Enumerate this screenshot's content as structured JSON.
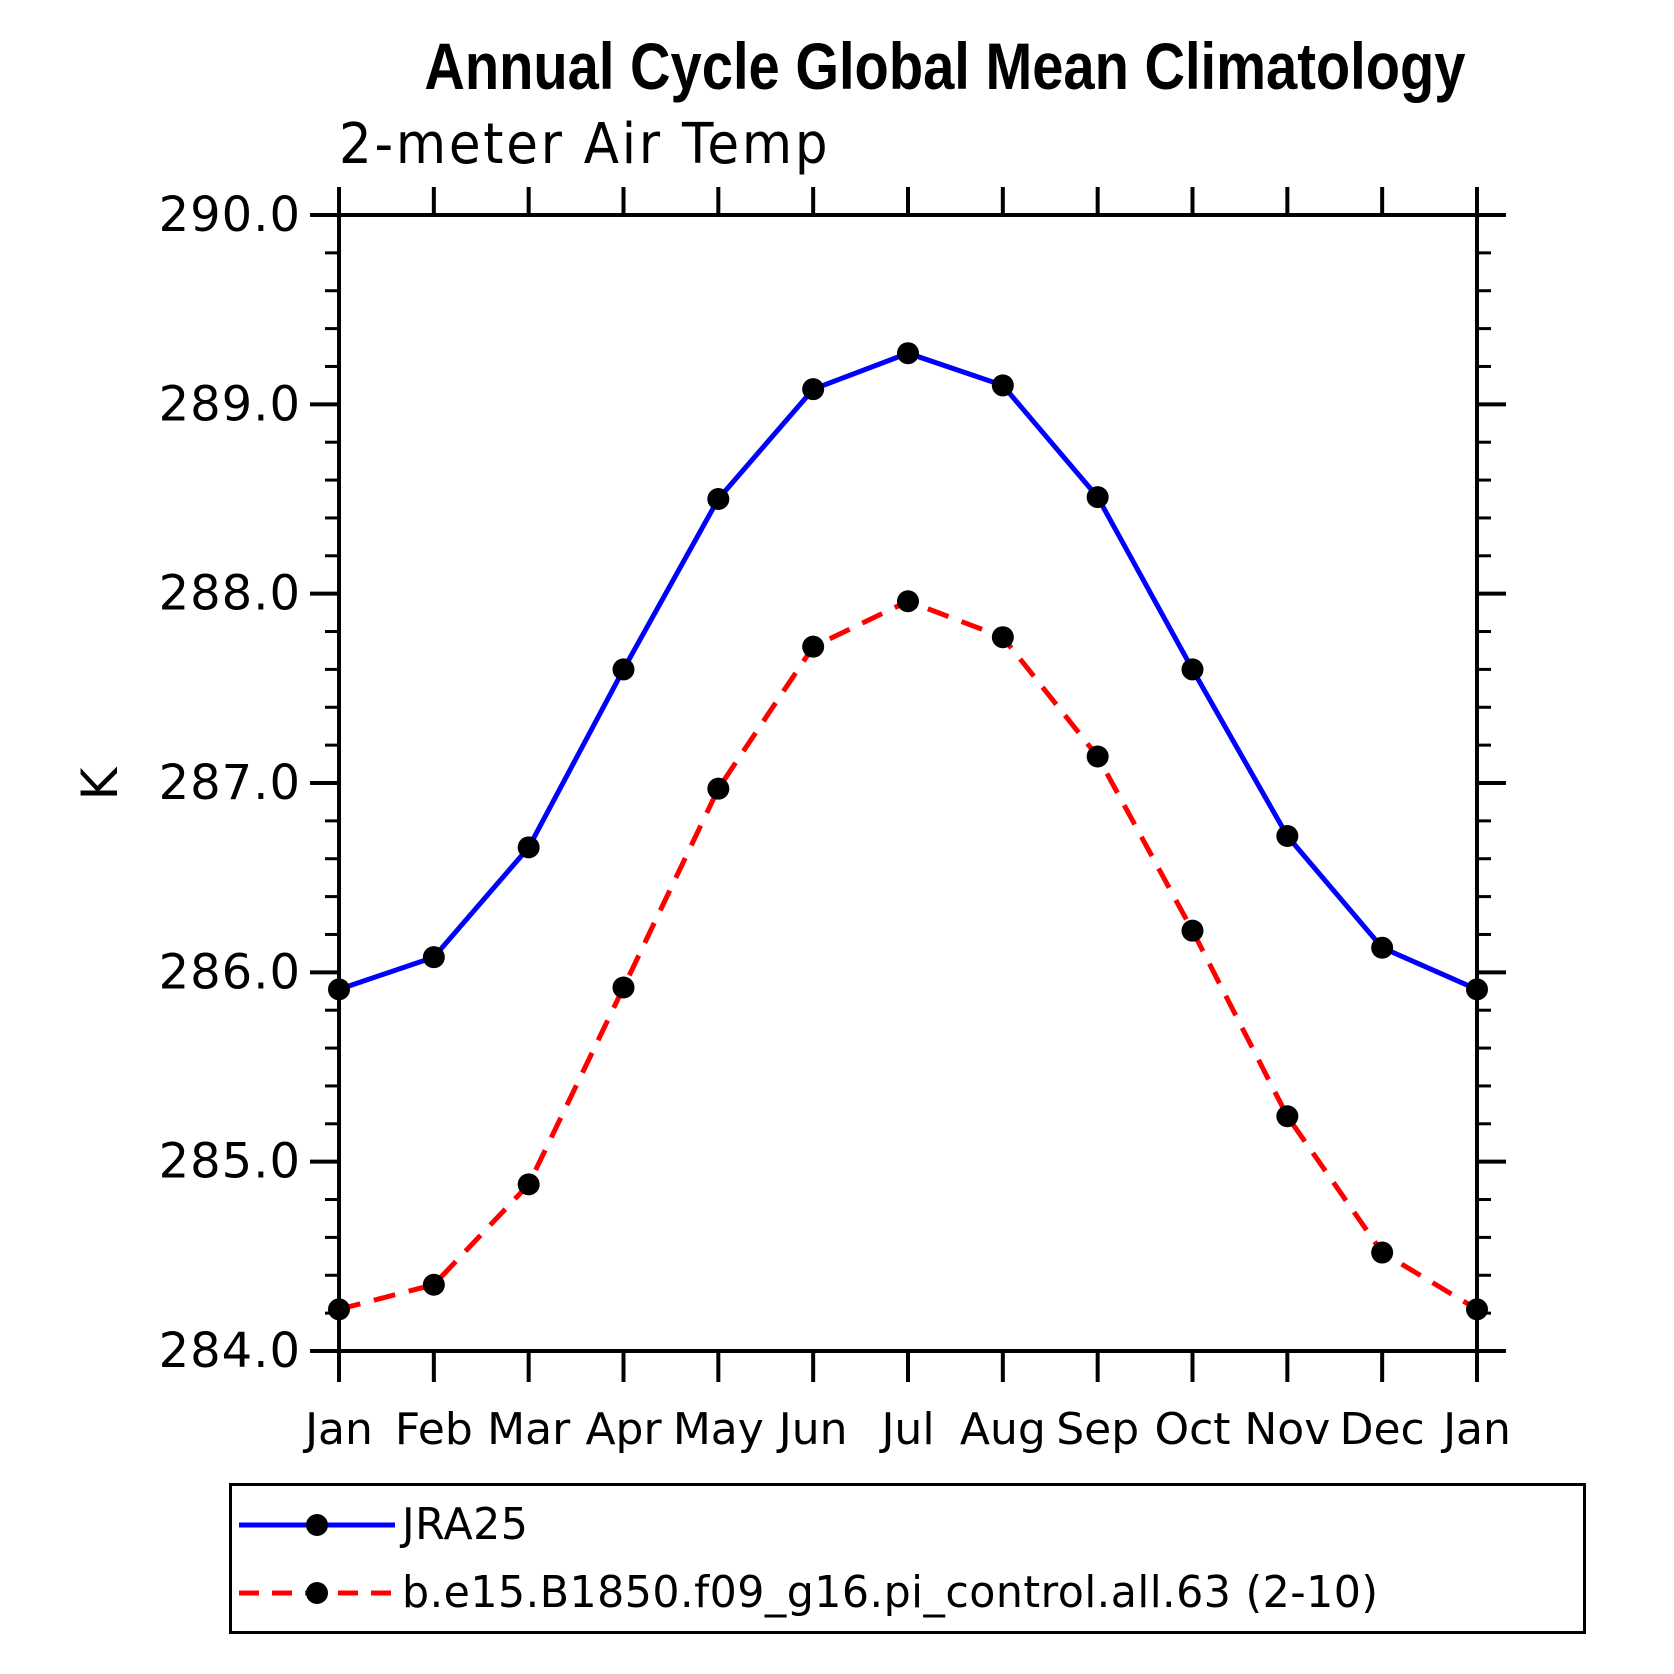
{
  "title": "Annual Cycle Global Mean Climatology",
  "subtitle": "2-meter Air Temp",
  "y_axis_label": "K",
  "chart_data": {
    "type": "line",
    "title": "Annual Cycle Global Mean Climatology",
    "subtitle": "2-meter Air Temp",
    "xlabel": "",
    "ylabel": "K",
    "categories": [
      "Jan",
      "Feb",
      "Mar",
      "Apr",
      "May",
      "Jun",
      "Jul",
      "Aug",
      "Sep",
      "Oct",
      "Nov",
      "Dec",
      "Jan"
    ],
    "ylim": [
      284.0,
      290.0
    ],
    "ytick_major_step": 1.0,
    "ytick_minor_step": 0.2,
    "ytick_labels": [
      "284.0",
      "285.0",
      "286.0",
      "287.0",
      "288.0",
      "289.0",
      "290.0"
    ],
    "grid": false,
    "legend_position": "bottom-left",
    "marker": {
      "shape": "circle",
      "color": "#000000",
      "radius": 11
    },
    "series": [
      {
        "name": "JRA25",
        "color": "#0000ff",
        "line_style": "solid",
        "values": [
          285.91,
          286.08,
          286.66,
          287.6,
          288.5,
          289.08,
          289.27,
          289.1,
          288.51,
          287.6,
          286.72,
          286.13,
          285.91
        ]
      },
      {
        "name": "b.e15.B1850.f09_g16.pi_control.all.63 (2-10)",
        "color": "#ff0000",
        "line_style": "dashed",
        "values": [
          284.22,
          284.35,
          284.88,
          285.92,
          286.97,
          287.72,
          287.96,
          287.77,
          287.14,
          286.22,
          285.24,
          284.52,
          284.22
        ]
      }
    ]
  },
  "legend": {
    "entries": [
      {
        "label": "JRA25",
        "color": "#0000ff",
        "style": "solid"
      },
      {
        "label": "b.e15.B1850.f09_g16.pi_control.all.63 (2-10)",
        "color": "#ff0000",
        "style": "dashed"
      }
    ]
  }
}
